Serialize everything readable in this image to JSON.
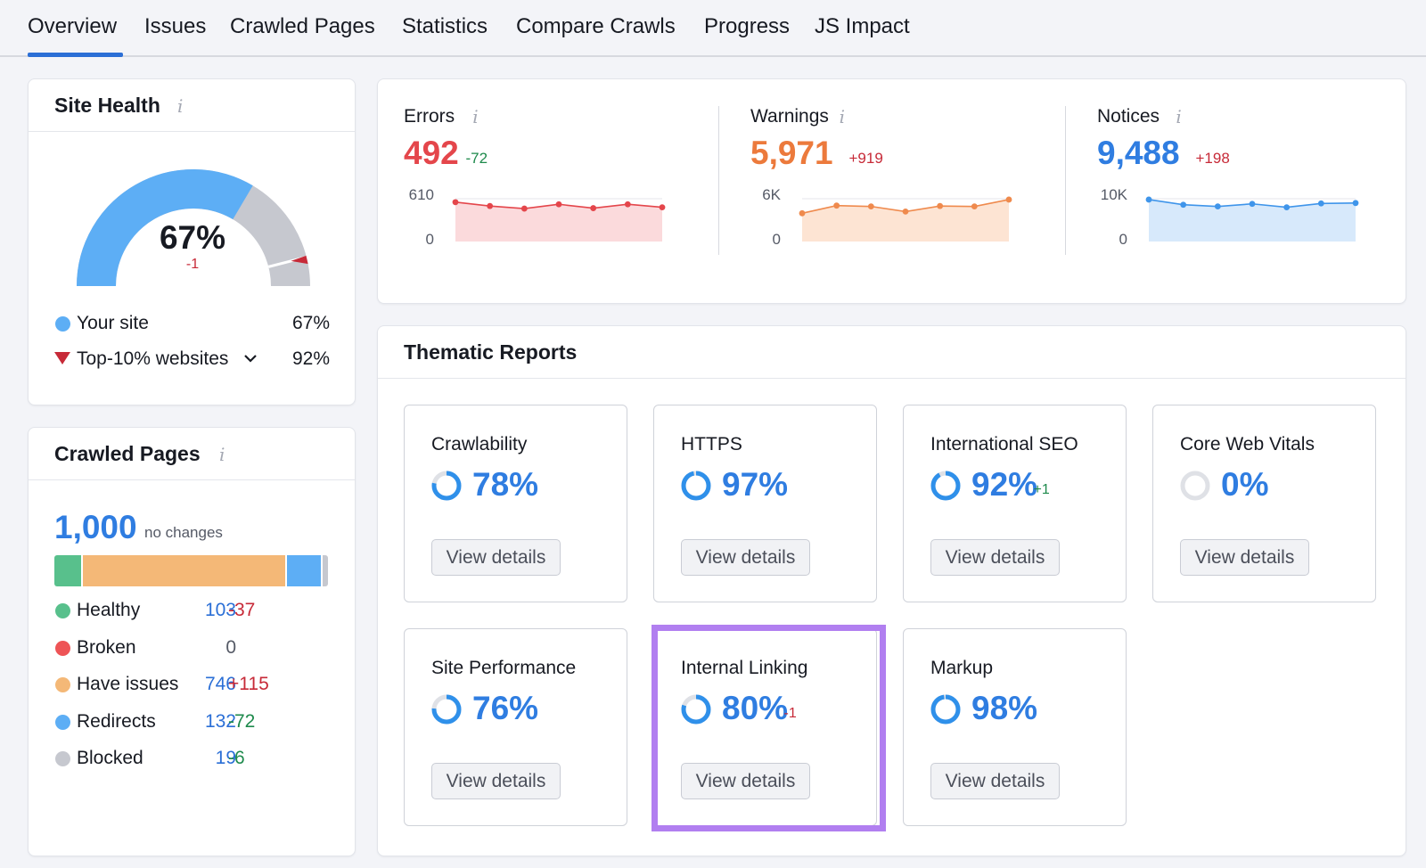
{
  "tabs": [
    "Overview",
    "Issues",
    "Crawled Pages",
    "Statistics",
    "Compare Crawls",
    "Progress",
    "JS Impact"
  ],
  "site_health": {
    "title": "Site Health",
    "info": "i",
    "percent": "67%",
    "gauge_fraction": 0.67,
    "top10_fraction": 0.92,
    "delta": "-1",
    "your_site_label": "Your site",
    "your_site_value": "67%",
    "top10_label": "Top-10% websites",
    "top10_value": "92%"
  },
  "crawled_pages": {
    "title": "Crawled Pages",
    "info": "i",
    "total": "1,000",
    "total_note": "no changes",
    "bar": [
      {
        "name": "Healthy",
        "count": 103,
        "color": "#58c08c"
      },
      {
        "name": "Have issues",
        "count": 746,
        "color": "#f4b877"
      },
      {
        "name": "Redirects",
        "count": 132,
        "color": "#5daef5"
      },
      {
        "name": "Blocked",
        "count": 19,
        "color": "#c6c8cf"
      }
    ],
    "rows": [
      {
        "label": "Healthy",
        "value": "103",
        "delta": "-37",
        "color": "#58c08c",
        "delta_color": "#c72a38"
      },
      {
        "label": "Broken",
        "value": "0",
        "delta": "",
        "color": "#ee5456",
        "delta_color": "#c72a38"
      },
      {
        "label": "Have issues",
        "value": "746",
        "delta": "+115",
        "color": "#f4b877",
        "delta_color": "#c72a38"
      },
      {
        "label": "Redirects",
        "value": "132",
        "delta": "-72",
        "color": "#5daef5",
        "delta_color": "#1e8a4c"
      },
      {
        "label": "Blocked",
        "value": "19",
        "delta": "-6",
        "color": "#c6c8cf",
        "delta_color": "#1e8a4c"
      }
    ]
  },
  "metrics": [
    {
      "label": "Errors",
      "info": "i",
      "value": "492",
      "delta": "-72",
      "value_color": "#e4464b",
      "delta_color": "#1e8a4c",
      "axis_top": "610",
      "axis_bottom": "0",
      "line_color": "#e4464b",
      "fill_color": "#fbdadc",
      "series": [
        0.92,
        0.83,
        0.77,
        0.87,
        0.78,
        0.87,
        0.8
      ]
    },
    {
      "label": "Warnings",
      "info": "i",
      "value": "5,971",
      "delta": "+919",
      "value_color": "#ec7a3c",
      "delta_color": "#c72a38",
      "axis_top": "6K",
      "axis_bottom": "0",
      "line_color": "#ef8a4d",
      "fill_color": "#fde4d3",
      "series": [
        0.66,
        0.84,
        0.82,
        0.7,
        0.83,
        0.82,
        0.98
      ]
    },
    {
      "label": "Notices",
      "info": "i",
      "value": "9,488",
      "delta": "+198",
      "value_color": "#2f7de1",
      "delta_color": "#c72a38",
      "axis_top": "10K",
      "axis_bottom": "0",
      "line_color": "#3f95ea",
      "fill_color": "#d7e9fb",
      "series": [
        0.98,
        0.86,
        0.82,
        0.88,
        0.8,
        0.89,
        0.9
      ]
    }
  ],
  "thematic": {
    "title": "Thematic Reports",
    "reports": [
      {
        "name": "Crawlability",
        "pct": "78%",
        "fraction": 0.78,
        "delta": "",
        "delta_color": "#1e8a4c",
        "button": "View details"
      },
      {
        "name": "HTTPS",
        "pct": "97%",
        "fraction": 0.97,
        "delta": "",
        "delta_color": "#1e8a4c",
        "button": "View details"
      },
      {
        "name": "International SEO",
        "pct": "92%",
        "fraction": 0.92,
        "delta": "+1",
        "delta_color": "#1e8a4c",
        "button": "View details"
      },
      {
        "name": "Core Web Vitals",
        "pct": "0%",
        "fraction": 0.0,
        "delta": "",
        "delta_color": "#1e8a4c",
        "button": "View details"
      },
      {
        "name": "Site Performance",
        "pct": "76%",
        "fraction": 0.76,
        "delta": "",
        "delta_color": "#1e8a4c",
        "button": "View details"
      },
      {
        "name": "Internal Linking",
        "pct": "80%",
        "fraction": 0.8,
        "delta": "-1",
        "delta_color": "#c72a38",
        "button": "View details"
      },
      {
        "name": "Markup",
        "pct": "98%",
        "fraction": 0.98,
        "delta": "",
        "delta_color": "#1e8a4c",
        "button": "View details"
      }
    ]
  },
  "colors": {
    "accent": "#2b6fd6",
    "gauge_blue": "#5daef5",
    "gauge_grey": "#c6c8cf",
    "top10_marker": "#c72a38",
    "highlight": "#b17ff0"
  }
}
